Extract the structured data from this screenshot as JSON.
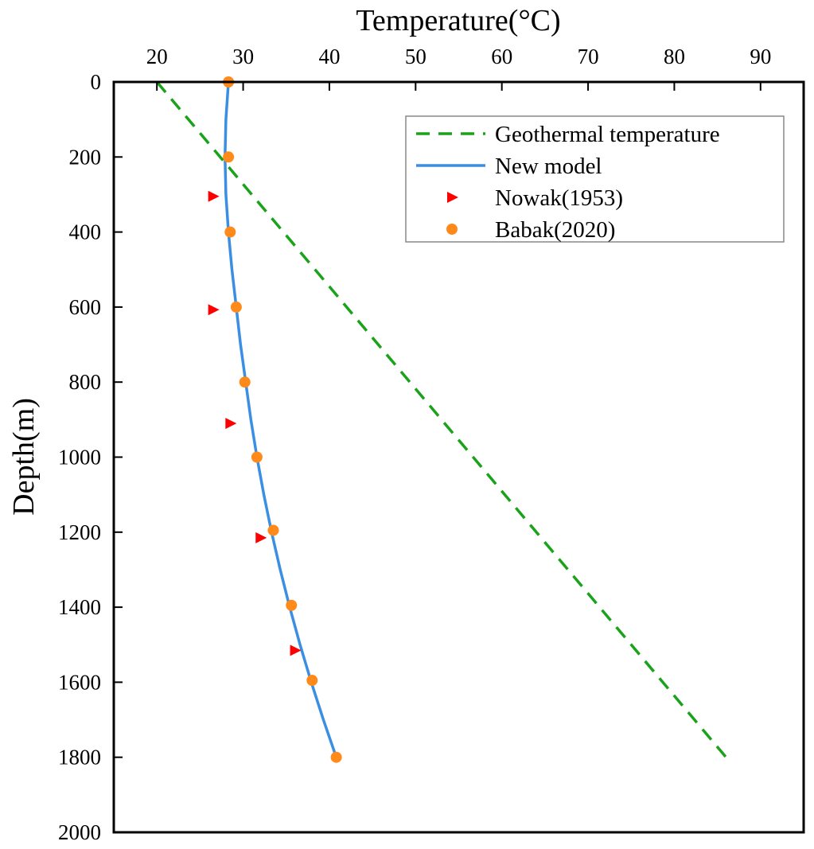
{
  "chart_data": {
    "type": "line",
    "title": "",
    "xlabel": "Temperature(°C)",
    "ylabel": "Depth(m)",
    "x_axis_position": "top",
    "y_axis_inverted": true,
    "xlim": [
      15,
      95
    ],
    "ylim": [
      0,
      2000
    ],
    "xticks": [
      20,
      30,
      40,
      50,
      60,
      70,
      80,
      90
    ],
    "yticks": [
      0,
      200,
      400,
      600,
      800,
      1000,
      1200,
      1400,
      1600,
      1800,
      2000
    ],
    "grid": false,
    "legend_position": "top-right",
    "series": [
      {
        "name": "Geothermal temperature",
        "kind": "dashed-line",
        "color": "#1aa31a",
        "points": [
          [
            20,
            0
          ],
          [
            86,
            1800
          ]
        ]
      },
      {
        "name": "New model",
        "kind": "line",
        "color": "#3a8fe3",
        "points": [
          [
            28.3,
            0
          ],
          [
            28.0,
            100
          ],
          [
            27.9,
            200
          ],
          [
            28.0,
            300
          ],
          [
            28.3,
            400
          ],
          [
            28.7,
            500
          ],
          [
            29.2,
            600
          ],
          [
            29.7,
            700
          ],
          [
            30.3,
            800
          ],
          [
            30.9,
            900
          ],
          [
            31.6,
            1000
          ],
          [
            32.4,
            1100
          ],
          [
            33.3,
            1200
          ],
          [
            34.3,
            1300
          ],
          [
            35.4,
            1400
          ],
          [
            36.6,
            1500
          ],
          [
            37.9,
            1600
          ],
          [
            39.3,
            1700
          ],
          [
            40.8,
            1800
          ]
        ]
      },
      {
        "name": "Nowak(1953)",
        "kind": "triangle-markers",
        "color": "#ff0000",
        "points": [
          [
            26.5,
            305
          ],
          [
            26.5,
            607
          ],
          [
            28.5,
            910
          ],
          [
            32.0,
            1215
          ],
          [
            36.0,
            1515
          ]
        ]
      },
      {
        "name": "Babak(2020)",
        "kind": "circle-markers",
        "color": "#ff8a1a",
        "points": [
          [
            28.3,
            0
          ],
          [
            28.3,
            200
          ],
          [
            28.5,
            400
          ],
          [
            29.2,
            600
          ],
          [
            30.2,
            800
          ],
          [
            31.6,
            1000
          ],
          [
            33.5,
            1195
          ],
          [
            35.6,
            1395
          ],
          [
            38.0,
            1595
          ],
          [
            40.8,
            1800
          ]
        ]
      }
    ]
  }
}
